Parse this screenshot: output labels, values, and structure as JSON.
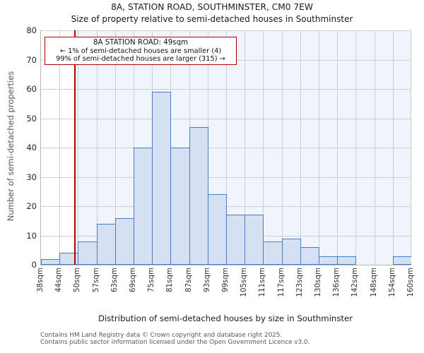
{
  "chart_data": {
    "type": "bar",
    "title": "8A, STATION ROAD, SOUTHMINSTER, CM0 7EW",
    "subtitle": "Size of property relative to semi-detached houses in Southminster",
    "xlabel": "Distribution of semi-detached houses by size in Southminster",
    "ylabel": "Number of semi-detached properties",
    "bin_edges_sqm": [
      38,
      44,
      50,
      57,
      63,
      69,
      75,
      81,
      87,
      93,
      99,
      105,
      111,
      117,
      123,
      130,
      136,
      142,
      148,
      154,
      160
    ],
    "x_tick_labels": [
      "38sqm",
      "44sqm",
      "50sqm",
      "57sqm",
      "63sqm",
      "69sqm",
      "75sqm",
      "81sqm",
      "87sqm",
      "93sqm",
      "99sqm",
      "105sqm",
      "111sqm",
      "117sqm",
      "123sqm",
      "130sqm",
      "136sqm",
      "142sqm",
      "148sqm",
      "154sqm",
      "160sqm"
    ],
    "values": [
      2,
      4,
      8,
      14,
      16,
      40,
      59,
      40,
      47,
      24,
      17,
      17,
      8,
      9,
      6,
      3,
      3,
      0,
      0,
      3
    ],
    "y_ticks": [
      0,
      10,
      20,
      30,
      40,
      50,
      60,
      70,
      80
    ],
    "ylim": [
      0,
      80
    ],
    "grid": true,
    "marker": {
      "value_sqm": 49,
      "label": "8A STATION ROAD: 49sqm"
    },
    "annotation": {
      "line1": "8A STATION ROAD: 49sqm",
      "line2": "← 1% of semi-detached houses are smaller (4)",
      "line3": "99% of semi-detached houses are larger (315) →"
    },
    "colors": {
      "bar_fill": "#d5e0f2",
      "bar_edge": "#4a7cc0",
      "shade": "#f0f4fb",
      "grid": "#cdced4",
      "marker_red": "#b20000"
    },
    "footer": [
      "Contains HM Land Registry data © Crown copyright and database right 2025.",
      "Contains public sector information licensed under the Open Government Licence v3.0."
    ]
  }
}
